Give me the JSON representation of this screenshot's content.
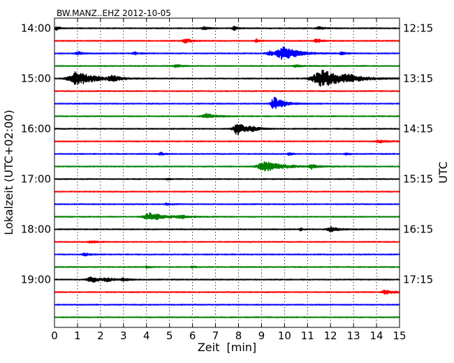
{
  "chart_data": {
    "type": "line",
    "title": "BW.MANZ..EHZ 2012-10-05",
    "xlabel": "Zeit  [min]",
    "ylabel_left": "Lokalzeit (UTC+02:00)",
    "ylabel_right": "UTC",
    "xlim": [
      0,
      15
    ],
    "x_ticks": [
      0,
      1,
      2,
      3,
      4,
      5,
      6,
      7,
      8,
      9,
      10,
      11,
      12,
      13,
      14,
      15
    ],
    "grid_x": true,
    "trace_minutes": 15,
    "trace_colors": [
      "#000000",
      "#ff0000",
      "#0000ff",
      "#008000"
    ],
    "left_ticks": [
      {
        "label": "14:00",
        "trace": 0
      },
      {
        "label": "15:00",
        "trace": 4
      },
      {
        "label": "16:00",
        "trace": 8
      },
      {
        "label": "17:00",
        "trace": 12
      },
      {
        "label": "18:00",
        "trace": 16
      },
      {
        "label": "19:00",
        "trace": 20
      }
    ],
    "right_ticks": [
      {
        "label": "12:15",
        "trace": 0
      },
      {
        "label": "13:15",
        "trace": 4
      },
      {
        "label": "14:15",
        "trace": 8
      },
      {
        "label": "15:15",
        "trace": 12
      },
      {
        "label": "16:15",
        "trace": 16
      },
      {
        "label": "17:15",
        "trace": 20
      }
    ],
    "traces": [
      {
        "color": "#000000",
        "bursts": [
          [
            0.1,
            0.6,
            0.15
          ],
          [
            6.5,
            0.6,
            0.15
          ],
          [
            7.8,
            0.7,
            0.15
          ],
          [
            11.5,
            0.5,
            0.2
          ]
        ]
      },
      {
        "color": "#ff0000",
        "bursts": [
          [
            5.7,
            0.7,
            0.25
          ],
          [
            8.8,
            0.6,
            0.15
          ],
          [
            11.4,
            0.6,
            0.2
          ]
        ]
      },
      {
        "color": "#0000ff",
        "bursts": [
          [
            1.0,
            0.6,
            0.2
          ],
          [
            3.5,
            0.4,
            0.2
          ],
          [
            9.4,
            0.7,
            0.4
          ],
          [
            10.0,
            2.0,
            0.55
          ],
          [
            12.5,
            0.4,
            0.2
          ]
        ]
      },
      {
        "color": "#008000",
        "bursts": [
          [
            5.3,
            0.5,
            0.2
          ],
          [
            10.5,
            0.4,
            0.2
          ]
        ]
      },
      {
        "color": "#000000",
        "bursts": [
          [
            1.0,
            2.2,
            0.7
          ],
          [
            2.5,
            0.8,
            0.3
          ],
          [
            11.7,
            2.6,
            0.9
          ],
          [
            12.8,
            0.7,
            0.4
          ]
        ]
      },
      {
        "color": "#ff0000",
        "bursts": []
      },
      {
        "color": "#0000ff",
        "bursts": [
          [
            9.6,
            2.2,
            0.35
          ]
        ]
      },
      {
        "color": "#008000",
        "bursts": [
          [
            6.6,
            0.8,
            0.35
          ]
        ]
      },
      {
        "color": "#000000",
        "bursts": [
          [
            7.95,
            2.0,
            0.35
          ],
          [
            8.6,
            0.5,
            0.3
          ]
        ]
      },
      {
        "color": "#ff0000",
        "bursts": [
          [
            14.1,
            0.5,
            0.3
          ]
        ]
      },
      {
        "color": "#0000ff",
        "bursts": [
          [
            4.6,
            0.7,
            0.1
          ],
          [
            10.2,
            0.6,
            0.1
          ],
          [
            12.7,
            0.4,
            0.15
          ]
        ]
      },
      {
        "color": "#008000",
        "bursts": [
          [
            9.2,
            1.5,
            0.7
          ],
          [
            11.2,
            0.7,
            0.25
          ]
        ]
      },
      {
        "color": "#000000",
        "bursts": [
          [
            4.9,
            0.4,
            0.1
          ]
        ]
      },
      {
        "color": "#ff0000",
        "bursts": []
      },
      {
        "color": "#0000ff",
        "bursts": [
          [
            4.9,
            0.4,
            0.15
          ]
        ]
      },
      {
        "color": "#008000",
        "bursts": [
          [
            4.2,
            1.2,
            0.6
          ],
          [
            5.5,
            0.6,
            0.2
          ]
        ]
      },
      {
        "color": "#000000",
        "bursts": [
          [
            10.7,
            0.4,
            0.1
          ],
          [
            12.0,
            0.8,
            0.3
          ]
        ]
      },
      {
        "color": "#ff0000",
        "bursts": [
          [
            1.6,
            0.4,
            0.2
          ]
        ]
      },
      {
        "color": "#0000ff",
        "bursts": [
          [
            1.3,
            0.5,
            0.2
          ]
        ]
      },
      {
        "color": "#008000",
        "bursts": [
          [
            4.0,
            0.4,
            0.1
          ],
          [
            6.0,
            0.3,
            0.1
          ]
        ]
      },
      {
        "color": "#000000",
        "bursts": [
          [
            1.6,
            1.0,
            0.35
          ],
          [
            2.3,
            0.5,
            0.3
          ],
          [
            3.0,
            0.4,
            0.2
          ]
        ]
      },
      {
        "color": "#ff0000",
        "bursts": [
          [
            14.4,
            0.7,
            0.3
          ]
        ]
      },
      {
        "color": "#0000ff",
        "bursts": []
      },
      {
        "color": "#008000",
        "bursts": []
      }
    ]
  }
}
